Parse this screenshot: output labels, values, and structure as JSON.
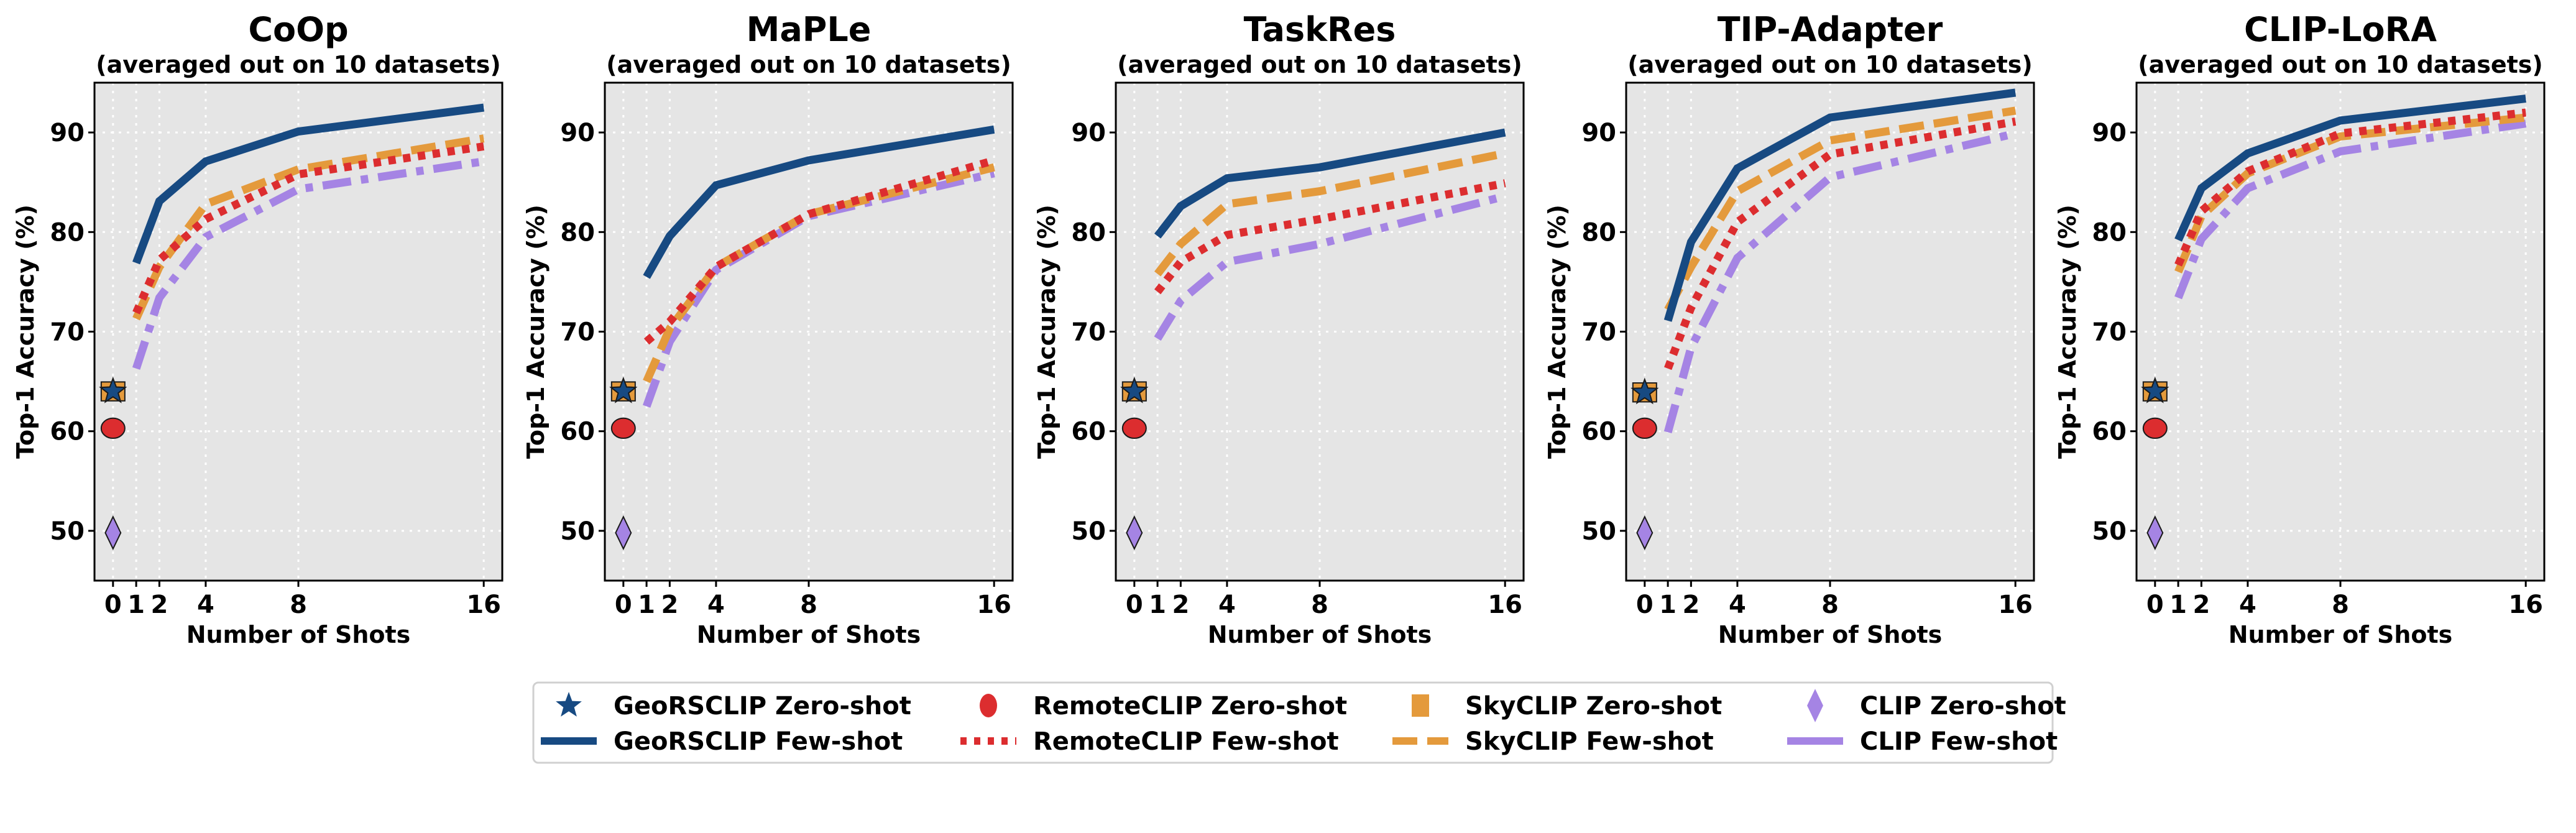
{
  "chart_data": [
    {
      "type": "line",
      "title": "CoOp",
      "subtitle": "(averaged out on 10 datasets)",
      "xlabel": "Number of Shots",
      "ylabel": "Top-1 Accuracy (%)",
      "x": [
        1,
        2,
        4,
        8,
        16
      ],
      "xticks": [
        0,
        1,
        2,
        4,
        8,
        16
      ],
      "yticks": [
        50,
        60,
        70,
        80,
        90
      ],
      "xlim": [
        -0.8,
        16.8
      ],
      "ylim": [
        45,
        95
      ],
      "grid": true,
      "series": [
        {
          "name": "GeoRSCLIP Few-shot",
          "values": [
            76.9,
            83.1,
            87.1,
            90.1,
            92.5
          ]
        },
        {
          "name": "RemoteCLIP Few-shot",
          "values": [
            71.9,
            77.2,
            81.3,
            85.8,
            88.6
          ]
        },
        {
          "name": "SkyCLIP Few-shot",
          "values": [
            71.3,
            76.5,
            82.8,
            86.3,
            89.4
          ]
        },
        {
          "name": "CLIP Few-shot",
          "values": [
            66.3,
            73.4,
            79.5,
            84.3,
            87.1
          ]
        }
      ],
      "zero_shot": [
        {
          "name": "GeoRSCLIP Zero-shot",
          "x": 0,
          "value": 64.0
        },
        {
          "name": "RemoteCLIP Zero-shot",
          "x": 0,
          "value": 60.3
        },
        {
          "name": "SkyCLIP Zero-shot",
          "x": 0,
          "value": 64.0
        },
        {
          "name": "CLIP Zero-shot",
          "x": 0,
          "value": 49.8
        }
      ]
    },
    {
      "type": "line",
      "title": "MaPLe",
      "subtitle": "(averaged out on 10 datasets)",
      "xlabel": "Number of Shots",
      "ylabel": "Top-1 Accuracy (%)",
      "x": [
        1,
        2,
        4,
        8,
        16
      ],
      "xticks": [
        0,
        1,
        2,
        4,
        8,
        16
      ],
      "yticks": [
        50,
        60,
        70,
        80,
        90
      ],
      "xlim": [
        -0.8,
        16.8
      ],
      "ylim": [
        45,
        95
      ],
      "grid": true,
      "series": [
        {
          "name": "GeoRSCLIP Few-shot",
          "values": [
            75.5,
            79.6,
            84.7,
            87.2,
            90.3
          ]
        },
        {
          "name": "RemoteCLIP Few-shot",
          "values": [
            69.0,
            71.0,
            76.5,
            81.8,
            87.2
          ]
        },
        {
          "name": "SkyCLIP Few-shot",
          "values": [
            65.0,
            70.3,
            76.5,
            81.8,
            86.5
          ]
        },
        {
          "name": "CLIP Few-shot",
          "values": [
            62.5,
            69.0,
            76.2,
            81.6,
            85.9
          ]
        }
      ],
      "zero_shot": [
        {
          "name": "GeoRSCLIP Zero-shot",
          "x": 0,
          "value": 64.0
        },
        {
          "name": "RemoteCLIP Zero-shot",
          "x": 0,
          "value": 60.3
        },
        {
          "name": "SkyCLIP Zero-shot",
          "x": 0,
          "value": 64.0
        },
        {
          "name": "CLIP Zero-shot",
          "x": 0,
          "value": 49.8
        }
      ]
    },
    {
      "type": "line",
      "title": "TaskRes",
      "subtitle": "(averaged out on 10 datasets)",
      "xlabel": "Number of Shots",
      "ylabel": "Top-1 Accuracy (%)",
      "x": [
        1,
        2,
        4,
        8,
        16
      ],
      "xticks": [
        0,
        1,
        2,
        4,
        8,
        16
      ],
      "yticks": [
        50,
        60,
        70,
        80,
        90
      ],
      "xlim": [
        -0.8,
        16.8
      ],
      "ylim": [
        45,
        95
      ],
      "grid": true,
      "series": [
        {
          "name": "GeoRSCLIP Few-shot",
          "values": [
            79.6,
            82.6,
            85.4,
            86.5,
            90.0
          ]
        },
        {
          "name": "RemoteCLIP Few-shot",
          "values": [
            74.0,
            77.0,
            79.7,
            81.3,
            84.9
          ]
        },
        {
          "name": "SkyCLIP Few-shot",
          "values": [
            75.8,
            78.8,
            82.8,
            84.1,
            87.9
          ]
        },
        {
          "name": "CLIP Few-shot",
          "values": [
            69.3,
            73.1,
            77.0,
            78.8,
            83.6
          ]
        }
      ],
      "zero_shot": [
        {
          "name": "GeoRSCLIP Zero-shot",
          "x": 0,
          "value": 64.0
        },
        {
          "name": "RemoteCLIP Zero-shot",
          "x": 0,
          "value": 60.3
        },
        {
          "name": "SkyCLIP Zero-shot",
          "x": 0,
          "value": 64.0
        },
        {
          "name": "CLIP Zero-shot",
          "x": 0,
          "value": 49.8
        }
      ]
    },
    {
      "type": "line",
      "title": "TIP-Adapter",
      "subtitle": "(averaged out on 10 datasets)",
      "xlabel": "Number of Shots",
      "ylabel": "Top-1 Accuracy (%)",
      "x": [
        1,
        2,
        4,
        8,
        16
      ],
      "xticks": [
        0,
        1,
        2,
        4,
        8,
        16
      ],
      "yticks": [
        50,
        60,
        70,
        80,
        90
      ],
      "xlim": [
        -0.8,
        16.8
      ],
      "ylim": [
        45,
        95
      ],
      "grid": true,
      "series": [
        {
          "name": "GeoRSCLIP Few-shot",
          "values": [
            71.1,
            79.0,
            86.4,
            91.5,
            94.0
          ]
        },
        {
          "name": "RemoteCLIP Few-shot",
          "values": [
            66.3,
            72.4,
            81.0,
            87.8,
            91.1
          ]
        },
        {
          "name": "SkyCLIP Few-shot",
          "values": [
            72.2,
            76.5,
            84.1,
            89.2,
            92.2
          ]
        },
        {
          "name": "CLIP Few-shot",
          "values": [
            59.9,
            68.4,
            77.4,
            85.5,
            89.9
          ]
        }
      ],
      "zero_shot": [
        {
          "name": "GeoRSCLIP Zero-shot",
          "x": 0,
          "value": 63.9
        },
        {
          "name": "RemoteCLIP Zero-shot",
          "x": 0,
          "value": 60.3
        },
        {
          "name": "SkyCLIP Zero-shot",
          "x": 0,
          "value": 63.9
        },
        {
          "name": "CLIP Zero-shot",
          "x": 0,
          "value": 49.8
        }
      ]
    },
    {
      "type": "line",
      "title": "CLIP-LoRA",
      "subtitle": "(averaged out on 10 datasets)",
      "xlabel": "Number of Shots",
      "ylabel": "Top-1 Accuracy (%)",
      "x": [
        1,
        2,
        4,
        8,
        16
      ],
      "xticks": [
        0,
        1,
        2,
        4,
        8,
        16
      ],
      "yticks": [
        50,
        60,
        70,
        80,
        90
      ],
      "xlim": [
        -0.8,
        16.8
      ],
      "ylim": [
        45,
        95
      ],
      "grid": true,
      "series": [
        {
          "name": "GeoRSCLIP Few-shot",
          "values": [
            79.2,
            84.4,
            87.9,
            91.2,
            93.4
          ]
        },
        {
          "name": "RemoteCLIP Few-shot",
          "values": [
            76.7,
            82.1,
            86.1,
            89.9,
            92.0
          ]
        },
        {
          "name": "SkyCLIP Few-shot",
          "values": [
            76.0,
            81.6,
            85.9,
            89.6,
            91.5
          ]
        },
        {
          "name": "CLIP Few-shot",
          "values": [
            73.4,
            79.3,
            84.4,
            88.1,
            90.9
          ]
        }
      ],
      "zero_shot": [
        {
          "name": "GeoRSCLIP Zero-shot",
          "x": 0,
          "value": 64.0
        },
        {
          "name": "RemoteCLIP Zero-shot",
          "x": 0,
          "value": 60.3
        },
        {
          "name": "SkyCLIP Zero-shot",
          "x": 0,
          "value": 64.0
        },
        {
          "name": "CLIP Zero-shot",
          "x": 0,
          "value": 49.8
        }
      ]
    }
  ],
  "styles": {
    "GeoRSCLIP": {
      "color": "#174a82",
      "line": "solid",
      "marker": "star"
    },
    "RemoteCLIP": {
      "color": "#dc2d2f",
      "line": "dotted",
      "marker": "circle"
    },
    "SkyCLIP": {
      "color": "#e49a3c",
      "line": "dashed",
      "marker": "square"
    },
    "CLIP": {
      "color": "#a584e4",
      "line": "dashdot",
      "marker": "diamond"
    },
    "plot_background": "#e5e5e5"
  },
  "legend": {
    "placement": "bottom-center",
    "items": [
      {
        "label": "GeoRSCLIP Zero-shot",
        "model": "GeoRSCLIP",
        "kind": "marker"
      },
      {
        "label": "GeoRSCLIP Few-shot",
        "model": "GeoRSCLIP",
        "kind": "line"
      },
      {
        "label": "RemoteCLIP Zero-shot",
        "model": "RemoteCLIP",
        "kind": "marker"
      },
      {
        "label": "RemoteCLIP Few-shot",
        "model": "RemoteCLIP",
        "kind": "line"
      },
      {
        "label": "SkyCLIP Zero-shot",
        "model": "SkyCLIP",
        "kind": "marker"
      },
      {
        "label": "SkyCLIP Few-shot",
        "model": "SkyCLIP",
        "kind": "line"
      },
      {
        "label": "CLIP Zero-shot",
        "model": "CLIP",
        "kind": "marker"
      },
      {
        "label": "CLIP Few-shot",
        "model": "CLIP",
        "kind": "line"
      }
    ]
  }
}
